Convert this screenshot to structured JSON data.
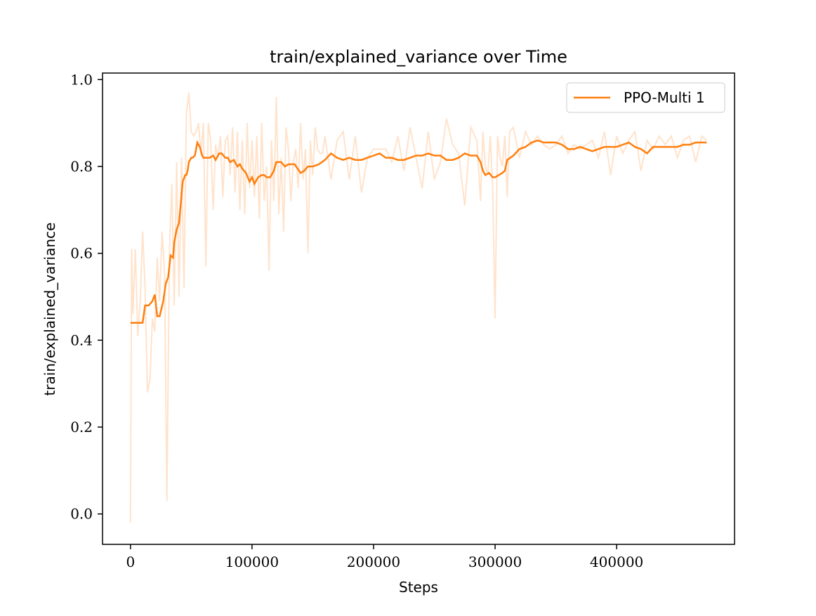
{
  "chart_data": {
    "type": "line",
    "title": "train/explained_variance over Time",
    "xlabel": "Steps",
    "ylabel": "train/explained_variance",
    "xlim": [
      -23000,
      497000
    ],
    "ylim": [
      -0.07,
      1.015
    ],
    "xticks": [
      0,
      100000,
      200000,
      300000,
      400000
    ],
    "xtick_labels": [
      "0",
      "100000",
      "200000",
      "300000",
      "400000"
    ],
    "yticks": [
      0.0,
      0.2,
      0.4,
      0.6,
      0.8,
      1.0
    ],
    "ytick_labels": [
      "0.0",
      "0.2",
      "0.4",
      "0.6",
      "0.8",
      "1.0"
    ],
    "grid": false,
    "legend_position": "top-right",
    "series": [
      {
        "name": "PPO-Multi 1",
        "color": "#ff7f0e",
        "role": "smoothed",
        "x": [
          0,
          10000,
          12000,
          15000,
          18000,
          20000,
          22000,
          24000,
          27000,
          29000,
          31000,
          33000,
          35000,
          36000,
          38000,
          40000,
          43000,
          45000,
          46000,
          47000,
          48000,
          50000,
          51000,
          53000,
          55000,
          57000,
          59000,
          60000,
          61000,
          63000,
          65000,
          68000,
          70000,
          73000,
          75000,
          78000,
          80000,
          82000,
          85000,
          88000,
          90000,
          92000,
          95000,
          98000,
          100000,
          102000,
          105000,
          108000,
          110000,
          112000,
          115000,
          118000,
          120000,
          124000,
          127000,
          130000,
          135000,
          140000,
          143000,
          146000,
          150000,
          155000,
          160000,
          165000,
          170000,
          175000,
          180000,
          185000,
          190000,
          195000,
          200000,
          205000,
          210000,
          215000,
          220000,
          225000,
          230000,
          235000,
          240000,
          245000,
          250000,
          255000,
          260000,
          265000,
          270000,
          275000,
          280000,
          285000,
          288000,
          290000,
          292000,
          295000,
          298000,
          300000,
          303000,
          306000,
          308000,
          310000,
          315000,
          320000,
          325000,
          330000,
          335000,
          340000,
          345000,
          350000,
          355000,
          360000,
          365000,
          370000,
          375000,
          380000,
          385000,
          390000,
          395000,
          400000,
          405000,
          410000,
          415000,
          420000,
          425000,
          430000,
          435000,
          440000,
          445000,
          450000,
          455000,
          460000,
          465000,
          470000,
          474000
        ],
        "values": [
          0.44,
          0.44,
          0.48,
          0.48,
          0.49,
          0.505,
          0.455,
          0.455,
          0.49,
          0.53,
          0.545,
          0.595,
          0.59,
          0.625,
          0.655,
          0.67,
          0.765,
          0.78,
          0.78,
          0.79,
          0.81,
          0.82,
          0.82,
          0.825,
          0.855,
          0.845,
          0.825,
          0.82,
          0.82,
          0.82,
          0.82,
          0.825,
          0.815,
          0.83,
          0.83,
          0.82,
          0.82,
          0.81,
          0.815,
          0.8,
          0.805,
          0.795,
          0.785,
          0.765,
          0.775,
          0.76,
          0.775,
          0.78,
          0.78,
          0.775,
          0.775,
          0.79,
          0.81,
          0.81,
          0.8,
          0.805,
          0.805,
          0.785,
          0.79,
          0.8,
          0.8,
          0.805,
          0.815,
          0.83,
          0.82,
          0.815,
          0.82,
          0.815,
          0.815,
          0.82,
          0.825,
          0.83,
          0.82,
          0.82,
          0.815,
          0.815,
          0.82,
          0.825,
          0.825,
          0.83,
          0.825,
          0.825,
          0.815,
          0.815,
          0.82,
          0.83,
          0.825,
          0.825,
          0.81,
          0.79,
          0.78,
          0.785,
          0.775,
          0.775,
          0.78,
          0.785,
          0.79,
          0.815,
          0.825,
          0.84,
          0.845,
          0.855,
          0.86,
          0.855,
          0.855,
          0.855,
          0.85,
          0.84,
          0.84,
          0.845,
          0.84,
          0.835,
          0.84,
          0.845,
          0.845,
          0.845,
          0.85,
          0.855,
          0.845,
          0.84,
          0.83,
          0.845,
          0.845,
          0.845,
          0.845,
          0.845,
          0.85,
          0.85,
          0.855,
          0.855,
          0.855
        ]
      },
      {
        "color": "#ffe3cc",
        "role": "raw",
        "x": [
          0,
          1000,
          2000,
          4000,
          6000,
          8000,
          10000,
          12000,
          14000,
          16000,
          18000,
          20000,
          22000,
          24000,
          26000,
          28000,
          30000,
          32000,
          34000,
          36000,
          38000,
          40000,
          42000,
          44000,
          46000,
          48000,
          50000,
          52000,
          54000,
          56000,
          58000,
          60000,
          62000,
          64000,
          66000,
          68000,
          70000,
          72000,
          74000,
          76000,
          78000,
          80000,
          82000,
          84000,
          86000,
          88000,
          90000,
          92000,
          94000,
          96000,
          98000,
          100000,
          102000,
          104000,
          106000,
          108000,
          110000,
          112000,
          114000,
          116000,
          118000,
          120000,
          122000,
          124000,
          126000,
          128000,
          130000,
          132000,
          134000,
          136000,
          138000,
          140000,
          142000,
          144000,
          146000,
          148000,
          150000,
          152000,
          154000,
          156000,
          158000,
          160000,
          165000,
          170000,
          175000,
          180000,
          185000,
          190000,
          195000,
          200000,
          205000,
          210000,
          215000,
          220000,
          225000,
          230000,
          235000,
          240000,
          245000,
          250000,
          255000,
          260000,
          265000,
          270000,
          275000,
          280000,
          285000,
          288000,
          290000,
          292000,
          294000,
          296000,
          298000,
          300000,
          302000,
          304000,
          306000,
          308000,
          310000,
          312000,
          315000,
          320000,
          325000,
          330000,
          335000,
          340000,
          345000,
          350000,
          355000,
          360000,
          365000,
          370000,
          375000,
          380000,
          385000,
          390000,
          395000,
          400000,
          405000,
          410000,
          415000,
          420000,
          425000,
          430000,
          435000,
          440000,
          445000,
          450000,
          455000,
          460000,
          465000,
          470000,
          474000
        ],
        "values": [
          -0.02,
          0.61,
          0.46,
          0.61,
          0.41,
          0.49,
          0.65,
          0.52,
          0.28,
          0.31,
          0.45,
          0.42,
          0.59,
          0.49,
          0.65,
          0.56,
          0.03,
          0.6,
          0.76,
          0.48,
          0.81,
          0.5,
          0.82,
          0.52,
          0.92,
          0.97,
          0.88,
          0.87,
          0.88,
          0.9,
          0.83,
          0.9,
          0.57,
          0.9,
          0.86,
          0.7,
          0.85,
          0.82,
          0.87,
          0.73,
          0.86,
          0.87,
          0.78,
          0.89,
          0.74,
          0.88,
          0.7,
          0.86,
          0.69,
          0.9,
          0.75,
          0.86,
          0.73,
          0.87,
          0.68,
          0.9,
          0.72,
          0.8,
          0.56,
          0.86,
          0.72,
          0.96,
          0.69,
          0.82,
          0.65,
          0.89,
          0.84,
          0.72,
          0.81,
          0.84,
          0.75,
          0.9,
          0.77,
          0.84,
          0.6,
          0.86,
          0.78,
          0.89,
          0.84,
          0.83,
          0.83,
          0.87,
          0.77,
          0.86,
          0.88,
          0.77,
          0.87,
          0.74,
          0.82,
          0.84,
          0.84,
          0.84,
          0.81,
          0.87,
          0.79,
          0.89,
          0.82,
          0.75,
          0.88,
          0.77,
          0.81,
          0.91,
          0.85,
          0.83,
          0.71,
          0.89,
          0.86,
          0.72,
          0.88,
          0.8,
          0.78,
          0.87,
          0.75,
          0.45,
          0.87,
          0.82,
          0.8,
          0.87,
          0.73,
          0.88,
          0.89,
          0.82,
          0.88,
          0.85,
          0.87,
          0.85,
          0.84,
          0.85,
          0.87,
          0.83,
          0.85,
          0.84,
          0.85,
          0.86,
          0.82,
          0.88,
          0.78,
          0.87,
          0.83,
          0.86,
          0.88,
          0.79,
          0.86,
          0.84,
          0.87,
          0.85,
          0.87,
          0.82,
          0.86,
          0.87,
          0.81,
          0.87,
          0.86
        ]
      }
    ]
  }
}
